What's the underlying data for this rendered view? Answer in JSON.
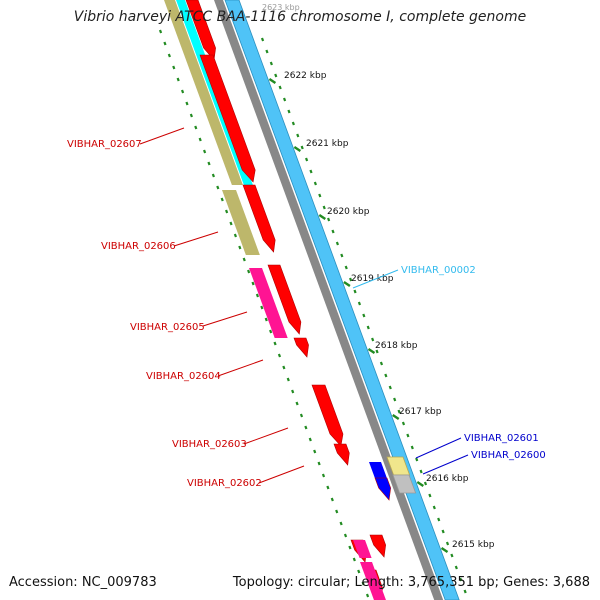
{
  "map": {
    "title": "Vibrio harveyi ATCC BAA-1116 chromosome I, complete genome",
    "accession": "Accession: NC_009783",
    "summary": "Topology: circular; Length: 3,765,351 bp; Genes: 3,688",
    "top_clipped_label": "2623 kbp",
    "ruler_ticks": [
      "2622 kbp",
      "2621 kbp",
      "2620 kbp",
      "2619 kbp",
      "2618 kbp",
      "2617 kbp",
      "2616 kbp",
      "2615 kbp"
    ],
    "gene_labels": [
      {
        "name": "VIBHAR_02607",
        "strand": "minus"
      },
      {
        "name": "VIBHAR_02606",
        "strand": "minus"
      },
      {
        "name": "VIBHAR_02605",
        "strand": "minus"
      },
      {
        "name": "VIBHAR_02604",
        "strand": "minus"
      },
      {
        "name": "VIBHAR_02603",
        "strand": "minus"
      },
      {
        "name": "VIBHAR_02602",
        "strand": "minus"
      },
      {
        "name": "VIBHAR_00002",
        "strand": "plus"
      },
      {
        "name": "VIBHAR_02601",
        "strand": "plus"
      },
      {
        "name": "VIBHAR_02600",
        "strand": "plus"
      }
    ],
    "colors": {
      "cds_red": "#ff0000",
      "trna_pink": "#ff1493",
      "olive": "#bdb76b",
      "cyan": "#00ffff",
      "sky_blue": "#4fc3f7",
      "backbone_gray": "#888888",
      "blue_gene": "#0000ff",
      "light_yellow": "#f0e68c",
      "gray_gene": "#c0c0c0",
      "tick_green": "#228b22",
      "label_red": "#cc0000",
      "label_cyan": "#33bbee",
      "label_blue": "#0000cc"
    }
  }
}
